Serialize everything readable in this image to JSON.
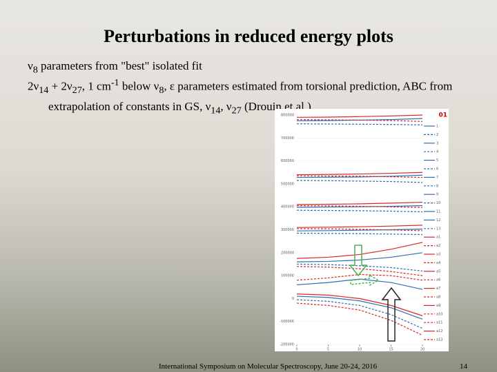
{
  "slide": {
    "title": "Perturbations in reduced energy plots",
    "bullets": [
      [
        "ν",
        {
          "sub": "8"
        },
        " parameters from \"best\" isolated fit"
      ],
      [
        "2ν",
        {
          "sub": "14"
        },
        " + 2ν",
        {
          "sub": "27"
        },
        ", 1 cm",
        {
          "sup": "-1"
        },
        " below ν",
        {
          "sub": "8"
        },
        ", ε parameters estimated from torsional prediction, ABC from extrapolation of constants in GS, ν",
        {
          "sub": "14"
        },
        ", ν",
        {
          "sub": "27"
        },
        " (Drouin et al.)"
      ]
    ],
    "footer": "International Symposium on Molecular Spectroscopy, June 20-24, 2016",
    "page": "14"
  },
  "chart_data": {
    "type": "line",
    "legend_title": "01",
    "x": [
      0,
      5,
      10,
      15,
      20
    ],
    "xlim": [
      0,
      20
    ],
    "xticks": [
      0,
      5,
      10,
      15,
      20
    ],
    "ylim": [
      -200000,
      800000
    ],
    "yticks": [
      -200000,
      -100000,
      0,
      100000,
      200000,
      300000,
      400000,
      500000,
      600000,
      700000,
      800000
    ],
    "series": [
      {
        "name": "1",
        "color": "#2e6db4",
        "dashed": false,
        "values": [
          775000,
          776000,
          778000,
          780000,
          785000
        ]
      },
      {
        "name": "2",
        "color": "#2e6db4",
        "dashed": true,
        "values": [
          762000,
          761000,
          760000,
          759000,
          757000
        ]
      },
      {
        "name": "3",
        "color": "#2e6db4",
        "dashed": false,
        "values": [
          528000,
          529000,
          530000,
          533000,
          538000
        ]
      },
      {
        "name": "4",
        "color": "#2e6db4",
        "dashed": true,
        "values": [
          515000,
          514000,
          512000,
          510000,
          506000
        ]
      },
      {
        "name": "5",
        "color": "#2e6db4",
        "dashed": false,
        "values": [
          398000,
          399000,
          400000,
          402000,
          405000
        ]
      },
      {
        "name": "6",
        "color": "#2e6db4",
        "dashed": true,
        "values": [
          385000,
          384000,
          383000,
          381000,
          378000
        ]
      },
      {
        "name": "7",
        "color": "#2e6db4",
        "dashed": false,
        "values": [
          295000,
          296000,
          298000,
          300000,
          303000
        ]
      },
      {
        "name": "8",
        "color": "#2e6db4",
        "dashed": true,
        "values": [
          285000,
          284000,
          283000,
          281000,
          279000
        ]
      },
      {
        "name": "9",
        "color": "#2e6db4",
        "dashed": false,
        "values": [
          160000,
          162000,
          168000,
          180000,
          200000
        ]
      },
      {
        "name": "10",
        "color": "#2e6db4",
        "dashed": true,
        "values": [
          150000,
          148000,
          143000,
          135000,
          120000
        ]
      },
      {
        "name": "11",
        "color": "#2e6db4",
        "dashed": false,
        "values": [
          60000,
          70000,
          85000,
          70000,
          40000
        ]
      },
      {
        "name": "12",
        "color": "#2e6db4",
        "dashed": false,
        "values": [
          10000,
          5000,
          -10000,
          -40000,
          -90000
        ]
      },
      {
        "name": "13",
        "color": "#2e6db4",
        "dashed": true,
        "values": [
          -5000,
          -12000,
          -30000,
          -70000,
          -130000
        ]
      },
      {
        "name": "a1",
        "color": "#d62728",
        "dashed": false,
        "values": [
          790000,
          791000,
          793000,
          796000,
          800000
        ]
      },
      {
        "name": "a2",
        "color": "#d62728",
        "dashed": true,
        "values": [
          780000,
          779000,
          778000,
          776000,
          772000
        ]
      },
      {
        "name": "a3",
        "color": "#d62728",
        "dashed": false,
        "values": [
          540000,
          541000,
          543000,
          546000,
          550000
        ]
      },
      {
        "name": "a4",
        "color": "#d62728",
        "dashed": true,
        "values": [
          535000,
          534000,
          533000,
          531000,
          528000
        ]
      },
      {
        "name": "a5",
        "color": "#d62728",
        "dashed": false,
        "values": [
          410000,
          411000,
          413000,
          416000,
          420000
        ]
      },
      {
        "name": "a6",
        "color": "#d62728",
        "dashed": true,
        "values": [
          405000,
          404000,
          402000,
          400000,
          397000
        ]
      },
      {
        "name": "a7",
        "color": "#d62728",
        "dashed": false,
        "values": [
          310000,
          311000,
          313000,
          316000,
          320000
        ]
      },
      {
        "name": "a8",
        "color": "#d62728",
        "dashed": true,
        "values": [
          305000,
          304000,
          302000,
          299000,
          296000
        ]
      },
      {
        "name": "a9",
        "color": "#d62728",
        "dashed": false,
        "values": [
          175000,
          180000,
          192000,
          215000,
          245000
        ]
      },
      {
        "name": "a10",
        "color": "#d62728",
        "dashed": true,
        "values": [
          140000,
          137000,
          130000,
          118000,
          100000
        ]
      },
      {
        "name": "a11",
        "color": "#d62728",
        "dashed": true,
        "values": [
          80000,
          90000,
          105000,
          100000,
          80000
        ]
      },
      {
        "name": "a12",
        "color": "#d62728",
        "dashed": false,
        "values": [
          20000,
          15000,
          0,
          -30000,
          -75000
        ]
      },
      {
        "name": "a13",
        "color": "#d62728",
        "dashed": true,
        "values": [
          -20000,
          -30000,
          -50000,
          -95000,
          -160000
        ]
      }
    ]
  }
}
